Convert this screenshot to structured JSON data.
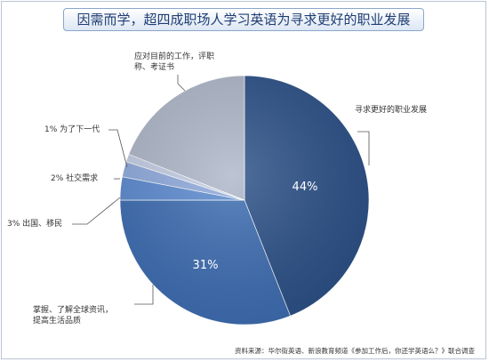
{
  "title": "因需而学，超四成职场人学习英语为寻求更好的职业发展",
  "source_note": "资料来源：华尔街英语、新浪教育频道《参加工作后，你还学英语么？》联合调查",
  "colors": {
    "career": "#2b5087",
    "global_info": "#3d6db2",
    "abroad": "#5b8ad0",
    "social": "#8faadd",
    "next_gen": "#c3cde4",
    "job_title": "#aeb7c9"
  },
  "chart_data": {
    "type": "pie",
    "title": "因需而学，超四成职场人学习英语为寻求更好的职业发展",
    "slices": [
      {
        "key": "career",
        "label": "寻求更好的职业发展",
        "value": 44,
        "data_label": "44%"
      },
      {
        "key": "global_info",
        "label": "掌握、了解全球资讯，提高生活品质",
        "value": 31,
        "data_label": "31%"
      },
      {
        "key": "abroad",
        "label": "出国、移民",
        "value": 3,
        "data_label": "3%"
      },
      {
        "key": "social",
        "label": "社交需求",
        "value": 2,
        "data_label": "2%"
      },
      {
        "key": "next_gen",
        "label": "为了下一代",
        "value": 1,
        "data_label": "1%"
      },
      {
        "key": "job_title",
        "label": "应对目前的工作，评职称、考证书",
        "value": 19,
        "data_label": ""
      }
    ],
    "legend": "none"
  },
  "labels": {
    "career": "寻求更好的职业发展",
    "global_line1": "掌握、了解全球资讯，",
    "global_line2": "提高生活品质",
    "abroad": "3% 出国、移民",
    "social": "2%  社交需求",
    "next_gen": "1%  为了下一代",
    "job_line1": "应对目前的工作，评职",
    "job_line2": "称、考证书"
  }
}
